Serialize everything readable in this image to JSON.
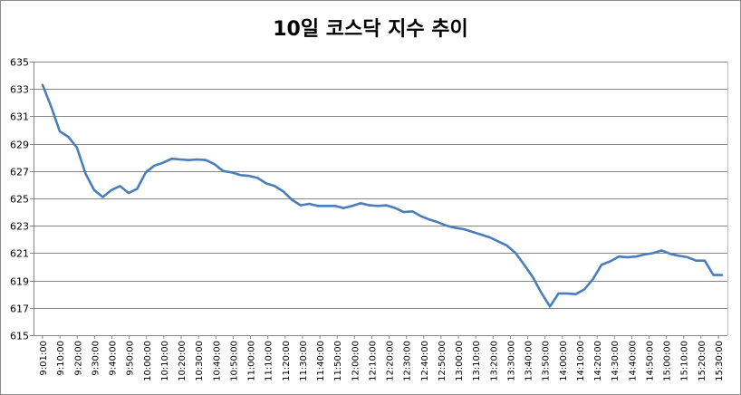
{
  "chart_data": {
    "type": "line",
    "title": "10일 코스닥 지수 추이",
    "xlabel": "",
    "ylabel": "",
    "ylim": [
      615,
      635
    ],
    "yticks": [
      615,
      617,
      619,
      621,
      623,
      625,
      627,
      629,
      631,
      633,
      635
    ],
    "grid": true,
    "legend": "none",
    "line_color": "#4a7ebb",
    "x_tick_labels": [
      "9:01:00",
      "9:10:00",
      "9:20:00",
      "9:30:00",
      "9:40:00",
      "9:50:00",
      "10:00:00",
      "10:10:00",
      "10:20:00",
      "10:30:00",
      "10:40:00",
      "10:50:00",
      "11:00:00",
      "11:10:00",
      "11:20:00",
      "11:30:00",
      "11:40:00",
      "11:50:00",
      "12:00:00",
      "12:10:00",
      "12:20:00",
      "12:30:00",
      "12:40:00",
      "12:50:00",
      "13:00:00",
      "13:10:00",
      "13:20:00",
      "13:30:00",
      "13:40:00",
      "13:50:00",
      "14:00:00",
      "14:10:00",
      "14:20:00",
      "14:30:00",
      "14:40:00",
      "14:50:00",
      "15:00:00",
      "15:10:00",
      "15:20:00",
      "15:30:00"
    ],
    "series": [
      {
        "values": [
          633.3,
          631.7,
          629.9,
          629.5,
          628.7,
          626.8,
          625.6,
          625.1,
          625.6,
          625.9,
          625.4,
          625.7,
          626.9,
          627.4,
          627.6,
          627.9,
          627.85,
          627.8,
          627.85,
          627.8,
          627.5,
          627.0,
          626.9,
          626.7,
          626.65,
          626.5,
          626.1,
          625.9,
          625.5,
          624.9,
          624.5,
          624.6,
          624.45,
          624.45,
          624.45,
          624.3,
          624.45,
          624.65,
          624.5,
          624.45,
          624.5,
          624.3,
          624.0,
          624.05,
          623.7,
          623.45,
          623.25,
          623.0,
          622.85,
          622.75,
          622.55,
          622.35,
          622.15,
          621.85,
          621.55,
          621.0,
          620.15,
          619.25,
          618.1,
          617.1,
          618.05,
          618.05,
          618.0,
          618.35,
          619.1,
          620.15,
          620.4,
          620.75,
          620.7,
          620.75,
          620.9,
          621.0,
          621.2,
          620.95,
          620.8,
          620.7,
          620.45,
          620.45,
          619.4,
          619.4
        ]
      }
    ]
  }
}
